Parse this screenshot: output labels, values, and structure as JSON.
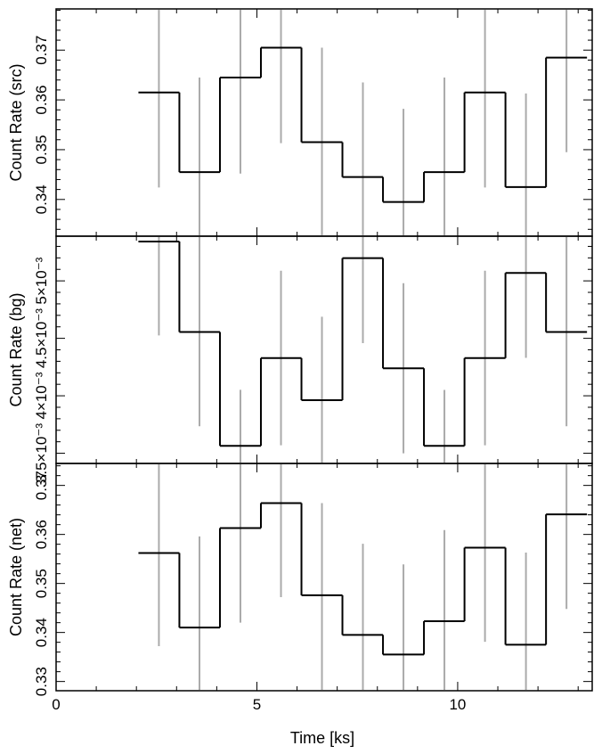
{
  "chart_data": {
    "type": "line",
    "style": "step histogram with vertical error bars, three stacked panels sharing a time axis",
    "colors": {
      "line": "#000000",
      "errorbar": "#aaaaaa",
      "frame": "#000000",
      "background": "#ffffff"
    },
    "x": {
      "label": "Time [ks]",
      "range": [
        0,
        13.35
      ],
      "ticks": [
        0,
        5,
        10
      ],
      "tick_labels": [
        "0",
        "5",
        "10"
      ],
      "bin_edges": [
        2.05,
        3.07,
        4.08,
        5.1,
        6.11,
        7.13,
        8.14,
        9.16,
        10.17,
        11.19,
        12.2,
        13.22
      ],
      "bin_centers": [
        2.56,
        3.57,
        4.59,
        5.6,
        6.62,
        7.64,
        8.65,
        9.67,
        10.68,
        11.7,
        12.71
      ]
    },
    "panels": [
      {
        "id": "src",
        "ylabel": "Count Rate (src)",
        "ylim": [
          0.3328,
          0.3781
        ],
        "yticks": [
          0.34,
          0.35,
          0.36,
          0.37
        ],
        "ytick_labels": [
          "0.34",
          "0.35",
          "0.36",
          "0.37"
        ],
        "values": [
          0.3615,
          0.3455,
          0.3645,
          0.3705,
          0.3515,
          0.3445,
          0.3395,
          0.3455,
          0.3615,
          0.3425,
          0.3685
        ],
        "err_low": [
          0.3424,
          0.3328,
          0.3452,
          0.3513,
          0.3328,
          0.3328,
          0.3328,
          0.3328,
          0.3424,
          0.3328,
          0.3495
        ],
        "err_high": [
          0.3781,
          0.3645,
          0.3781,
          0.3781,
          0.3705,
          0.3635,
          0.3582,
          0.3645,
          0.3781,
          0.3613,
          0.3781
        ]
      },
      {
        "id": "bg",
        "ylabel": "Count Rate (bg)",
        "ylim": [
          0.003419,
          0.005381
        ],
        "yticks": [
          0.0035,
          0.004,
          0.0045,
          0.005
        ],
        "ytick_labels": [
          "3.5×10⁻³",
          "4×10⁻³",
          "4.5×10⁻³",
          "5×10⁻³"
        ],
        "values": [
          0.005342,
          0.004555,
          0.003564,
          0.004328,
          0.003962,
          0.005198,
          0.004239,
          0.003564,
          0.004328,
          0.005069,
          0.004555
        ],
        "err_low": [
          0.004525,
          0.003735,
          0.003419,
          0.003569,
          0.003419,
          0.004458,
          0.003499,
          0.003419,
          0.003569,
          0.00433,
          0.003735
        ],
        "err_high": [
          0.005381,
          0.005381,
          0.004052,
          0.005088,
          0.004688,
          0.005381,
          0.00498,
          0.004051,
          0.005088,
          0.005381,
          0.005381
        ]
      },
      {
        "id": "net",
        "ylabel": "Count Rate (net)",
        "ylim": [
          0.3283,
          0.3743
        ],
        "yticks": [
          0.33,
          0.34,
          0.35,
          0.36,
          0.37
        ],
        "ytick_labels": [
          "0.33",
          "0.34",
          "0.35",
          "0.36",
          "0.37"
        ],
        "values": [
          0.3562,
          0.341,
          0.3613,
          0.3664,
          0.3476,
          0.3395,
          0.3355,
          0.3423,
          0.3573,
          0.3375,
          0.3641
        ],
        "err_low": [
          0.3372,
          0.3283,
          0.342,
          0.3472,
          0.3283,
          0.3283,
          0.3283,
          0.3283,
          0.3381,
          0.3283,
          0.3448
        ],
        "err_high": [
          0.3743,
          0.3596,
          0.3743,
          0.3743,
          0.3664,
          0.3581,
          0.3539,
          0.3609,
          0.3743,
          0.3563,
          0.3743
        ]
      }
    ]
  }
}
